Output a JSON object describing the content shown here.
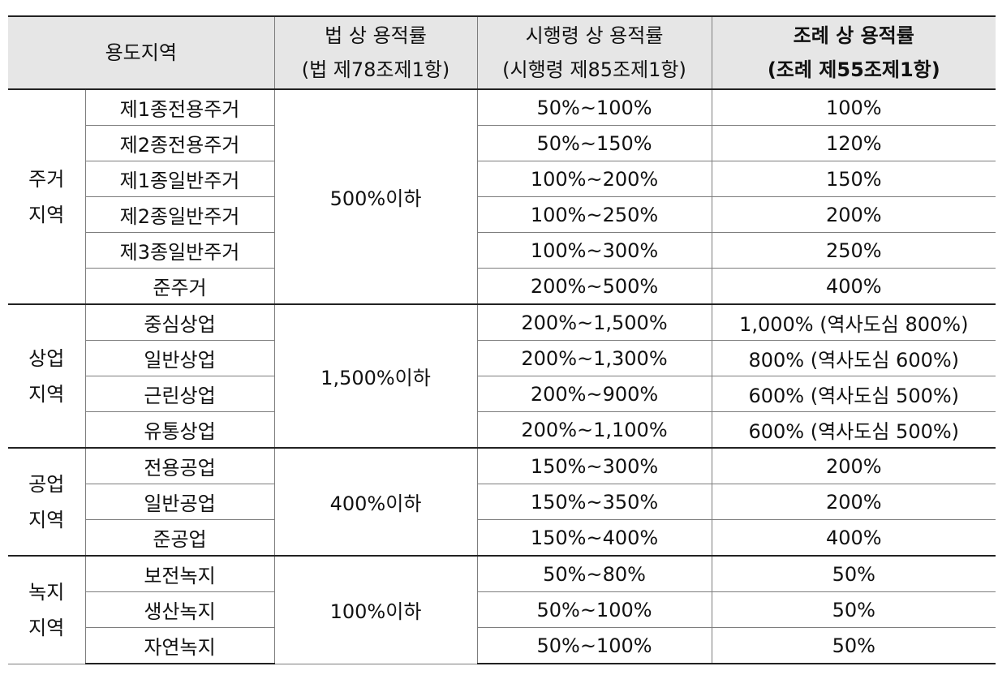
{
  "header": {
    "zone": "용도지역",
    "law_line1": "법 상 용적률",
    "law_line2": "(법 제78조제1항)",
    "decree_line1": "시행령 상 용적률",
    "decree_line2": "(시행령 제85조제1항)",
    "ordinance_line1": "조례 상 용적률",
    "ordinance_line2": "(조례 제55조제1항)"
  },
  "groups": [
    {
      "name_line1": "주거",
      "name_line2": "지역",
      "law": "500%이하",
      "rows": [
        {
          "zone": "제1종전용주거",
          "decree": "50%~100%",
          "ordinance": "100%"
        },
        {
          "zone": "제2종전용주거",
          "decree": "50%~150%",
          "ordinance": "120%"
        },
        {
          "zone": "제1종일반주거",
          "decree": "100%~200%",
          "ordinance": "150%"
        },
        {
          "zone": "제2종일반주거",
          "decree": "100%~250%",
          "ordinance": "200%"
        },
        {
          "zone": "제3종일반주거",
          "decree": "100%~300%",
          "ordinance": "250%"
        },
        {
          "zone": "준주거",
          "decree": "200%~500%",
          "ordinance": "400%"
        }
      ]
    },
    {
      "name_line1": "상업",
      "name_line2": "지역",
      "law": "1,500%이하",
      "rows": [
        {
          "zone": "중심상업",
          "decree": "200%~1,500%",
          "ordinance": "1,000% (역사도심 800%)"
        },
        {
          "zone": "일반상업",
          "decree": "200%~1,300%",
          "ordinance": "800% (역사도심 600%)"
        },
        {
          "zone": "근린상업",
          "decree": "200%~900%",
          "ordinance": "600% (역사도심 500%)"
        },
        {
          "zone": "유통상업",
          "decree": "200%~1,100%",
          "ordinance": "600% (역사도심 500%)"
        }
      ]
    },
    {
      "name_line1": "공업",
      "name_line2": "지역",
      "law": "400%이하",
      "rows": [
        {
          "zone": "전용공업",
          "decree": "150%~300%",
          "ordinance": "200%"
        },
        {
          "zone": "일반공업",
          "decree": "150%~350%",
          "ordinance": "200%"
        },
        {
          "zone": "준공업",
          "decree": "150%~400%",
          "ordinance": "400%"
        }
      ]
    },
    {
      "name_line1": "녹지",
      "name_line2": "지역",
      "law": "100%이하",
      "rows": [
        {
          "zone": "보전녹지",
          "decree": "50%~80%",
          "ordinance": "50%"
        },
        {
          "zone": "생산녹지",
          "decree": "50%~100%",
          "ordinance": "50%"
        },
        {
          "zone": "자연녹지",
          "decree": "50%~100%",
          "ordinance": "50%"
        }
      ]
    }
  ]
}
